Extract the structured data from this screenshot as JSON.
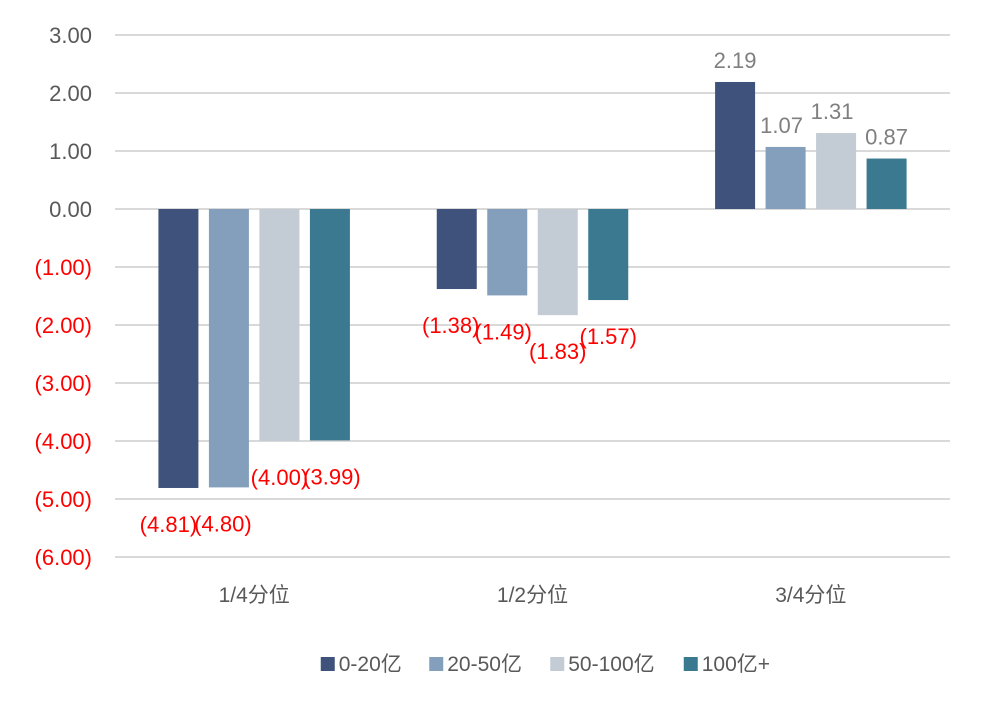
{
  "colors": {
    "series": [
      "#3f527c",
      "#849fbb",
      "#c3cbd4",
      "#3a7990"
    ],
    "negative_label": "#ff0000",
    "positive_label": "#7f7f7f",
    "gridline": "#d9d9d9",
    "axis_text": "#595959"
  },
  "chart_data": {
    "type": "bar",
    "categories": [
      "1/4分位",
      "1/2分位",
      "3/4分位"
    ],
    "series": [
      {
        "name": "0-20亿",
        "values": [
          -4.81,
          -1.38,
          2.19
        ]
      },
      {
        "name": "20-50亿",
        "values": [
          -4.8,
          -1.49,
          1.07
        ]
      },
      {
        "name": "50-100亿",
        "values": [
          -4.0,
          -1.83,
          1.31
        ]
      },
      {
        "name": "100亿+",
        "values": [
          -3.99,
          -1.57,
          0.87
        ]
      }
    ],
    "data_labels": [
      [
        "(4.81)",
        "(1.38)",
        "2.19"
      ],
      [
        "(4.80)",
        "(1.49)",
        "1.07"
      ],
      [
        "(4.00)",
        "(1.83)",
        "1.31"
      ],
      [
        "(3.99)",
        "(1.57)",
        "0.87"
      ]
    ],
    "ylim": [
      -6,
      3
    ],
    "y_ticks": [
      "3.00",
      "2.00",
      "1.00",
      "0.00",
      "(1.00)",
      "(2.00)",
      "(3.00)",
      "(4.00)",
      "(5.00)",
      "(6.00)"
    ],
    "y_tick_values": [
      3,
      2,
      1,
      0,
      -1,
      -2,
      -3,
      -4,
      -5,
      -6
    ],
    "grid": true,
    "legend_position": "bottom",
    "title": "",
    "xlabel": "",
    "ylabel": ""
  }
}
